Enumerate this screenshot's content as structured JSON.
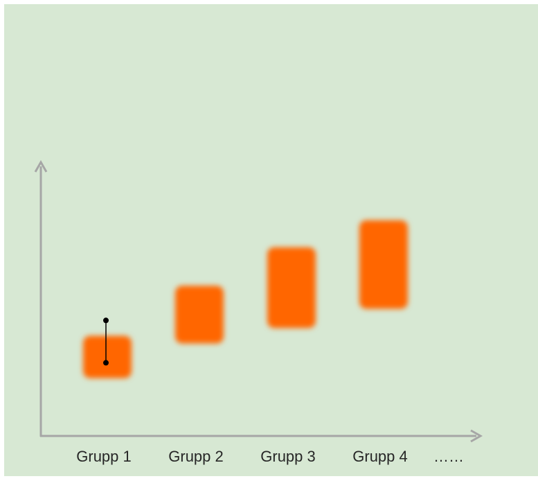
{
  "chart_data": {
    "type": "bar",
    "categories": [
      "Grupp 1",
      "Grupp 2",
      "Grupp 3",
      "Grupp 4"
    ],
    "overflow_label": "……",
    "ranges": [
      {
        "low": 1.5,
        "high": 2.6
      },
      {
        "low": 2.4,
        "high": 3.9
      },
      {
        "low": 2.8,
        "high": 4.9
      },
      {
        "low": 3.3,
        "high": 5.6
      }
    ],
    "error_bar": {
      "category": "Grupp 1",
      "low": 1.9,
      "high": 3.0
    },
    "ylim": [
      0,
      7
    ],
    "bar_color": "#ff6600",
    "axis_color": "#a6a6a6",
    "background_color": "#d7e8d3"
  }
}
